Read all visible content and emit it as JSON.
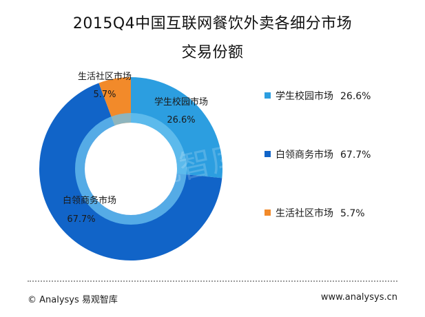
{
  "chart_data": {
    "type": "pie",
    "title_lines": [
      "2015Q4中国互联网餐饮外卖各细分市场",
      "交易份额"
    ],
    "categories": [
      "学生校园市场",
      "白领商务市场",
      "生活社区市场"
    ],
    "values": [
      26.6,
      67.7,
      5.7
    ],
    "value_labels": [
      "26.6%",
      "67.7%",
      "5.7%"
    ],
    "colors": [
      "#2c9ee0",
      "#1164c8",
      "#f28a2a"
    ],
    "inner_ring_color": "#6cc3f0",
    "legend": {
      "position": "right"
    }
  },
  "watermark": "易观智库",
  "footer": {
    "copyright": "© Analysys 易观智库",
    "url": "www.analysys.cn"
  }
}
